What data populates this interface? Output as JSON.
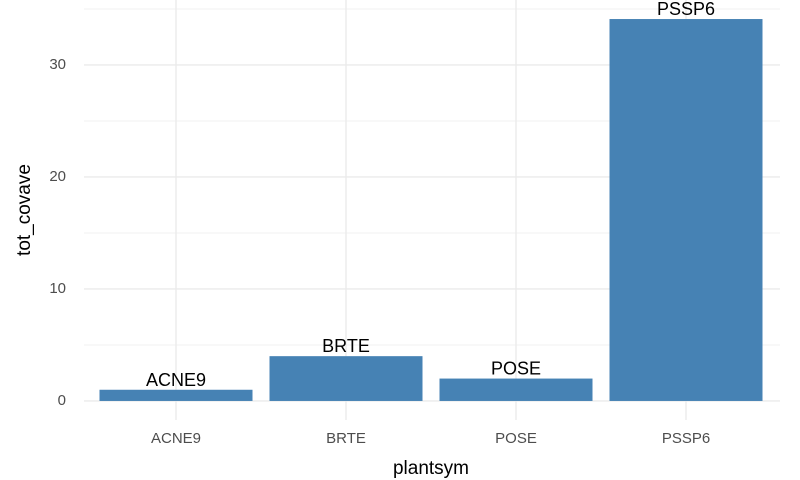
{
  "chart_data": {
    "type": "bar",
    "x_label": "plantsym",
    "y_label": "tot_covave",
    "categories": [
      "ACNE9",
      "BRTE",
      "POSE",
      "PSSP6"
    ],
    "values": [
      1,
      4,
      2,
      34.1
    ],
    "color": "#4682b4",
    "ylim": [
      -1.7,
      35.8
    ],
    "yticks": [
      0,
      10,
      20,
      30
    ],
    "minor_yticks": [
      5,
      15,
      25,
      35
    ],
    "grid": true
  }
}
